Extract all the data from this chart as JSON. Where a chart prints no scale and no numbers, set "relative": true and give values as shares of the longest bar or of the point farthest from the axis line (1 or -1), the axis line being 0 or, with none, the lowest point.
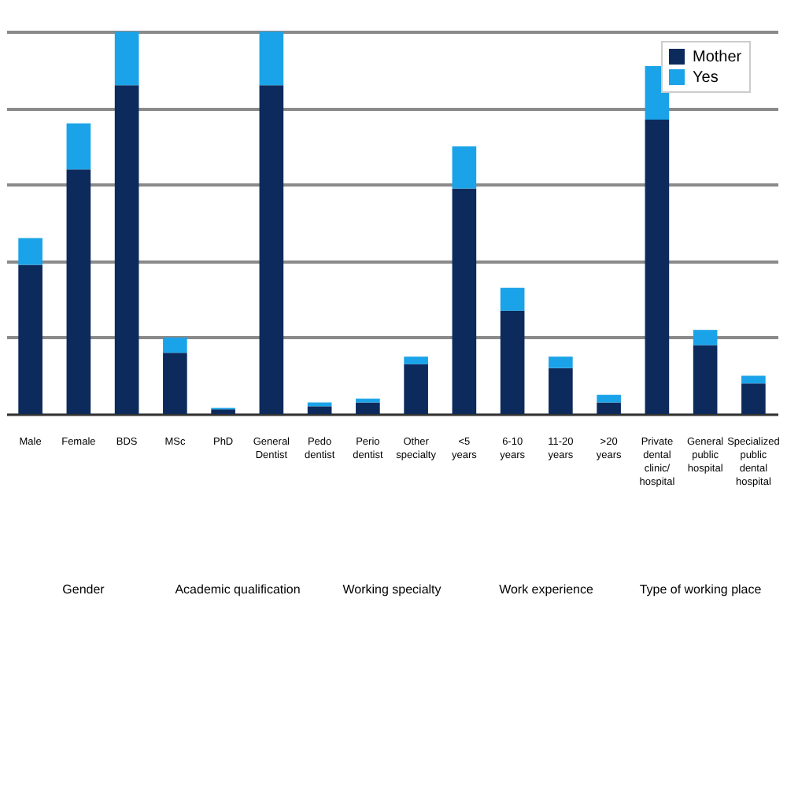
{
  "chart_data": {
    "type": "bar",
    "stacked": true,
    "relative": true,
    "grid": true,
    "legend": "top right",
    "categories": [
      "Male",
      "Female",
      "BDS",
      "MSc",
      "PhD",
      "General Dentist",
      "Pedo dentist",
      "Perio dentist",
      "Other specialty",
      "<5 years",
      "6-10 years",
      "11-20 years",
      ">20 years",
      "Private dental clinic/ hospital",
      "General public hospital",
      "Specialized public dental hospital"
    ],
    "series": [
      {
        "name": "Mother",
        "color": "#0d2a5c",
        "values": [
          0.39,
          0.64,
          0.86,
          0.16,
          0.012,
          0.86,
          0.02,
          0.03,
          0.13,
          0.59,
          0.27,
          0.12,
          0.03,
          0.77,
          0.18,
          0.08
        ]
      },
      {
        "name": "Yes",
        "color": "#1aa3e8",
        "values": [
          0.07,
          0.12,
          0.14,
          0.04,
          0.004,
          0.14,
          0.01,
          0.01,
          0.02,
          0.11,
          0.06,
          0.03,
          0.02,
          0.14,
          0.04,
          0.02
        ]
      }
    ],
    "annotations": [
      "Gender",
      "Academic qualification",
      "Working specialty",
      "Work experience",
      "Type of working place"
    ]
  }
}
